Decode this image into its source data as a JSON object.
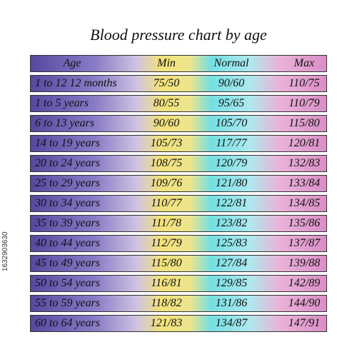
{
  "title": "Blood  pressure chart by age",
  "stock_id": "1632903630",
  "table": {
    "header": [
      "Age",
      "Min",
      "Normal",
      "Max"
    ],
    "rows": [
      [
        "1 to 12 12 months",
        "75/50",
        "90/60",
        "110/75"
      ],
      [
        "1 to 5 years",
        "80/55",
        "95/65",
        "110/79"
      ],
      [
        "6 to 13 years",
        "90/60",
        "105/70",
        "115/80"
      ],
      [
        "14 to 19 years",
        "105/73",
        "117/77",
        "120/81"
      ],
      [
        "20 to 24 years",
        "108/75",
        "120/79",
        "132/83"
      ],
      [
        "25 to 29 years",
        "109/76",
        "121/80",
        "133/84"
      ],
      [
        "30 to 34 years",
        "110/77",
        "122/81",
        "134/85"
      ],
      [
        "35 to 39 years",
        "111/78",
        "123/82",
        "135/86"
      ],
      [
        "40 to 44 years",
        "112/79",
        "125/83",
        "137/87"
      ],
      [
        "45 to 49 years",
        "115/80",
        "127/84",
        "139/88"
      ],
      [
        "50 to 54 years",
        "116/81",
        "129/85",
        "142/89"
      ],
      [
        "55 to 59 years",
        "118/82",
        "131/86",
        "144/90"
      ],
      [
        "60 to 64 years",
        "121/83",
        "134/87",
        "147/91"
      ]
    ]
  }
}
